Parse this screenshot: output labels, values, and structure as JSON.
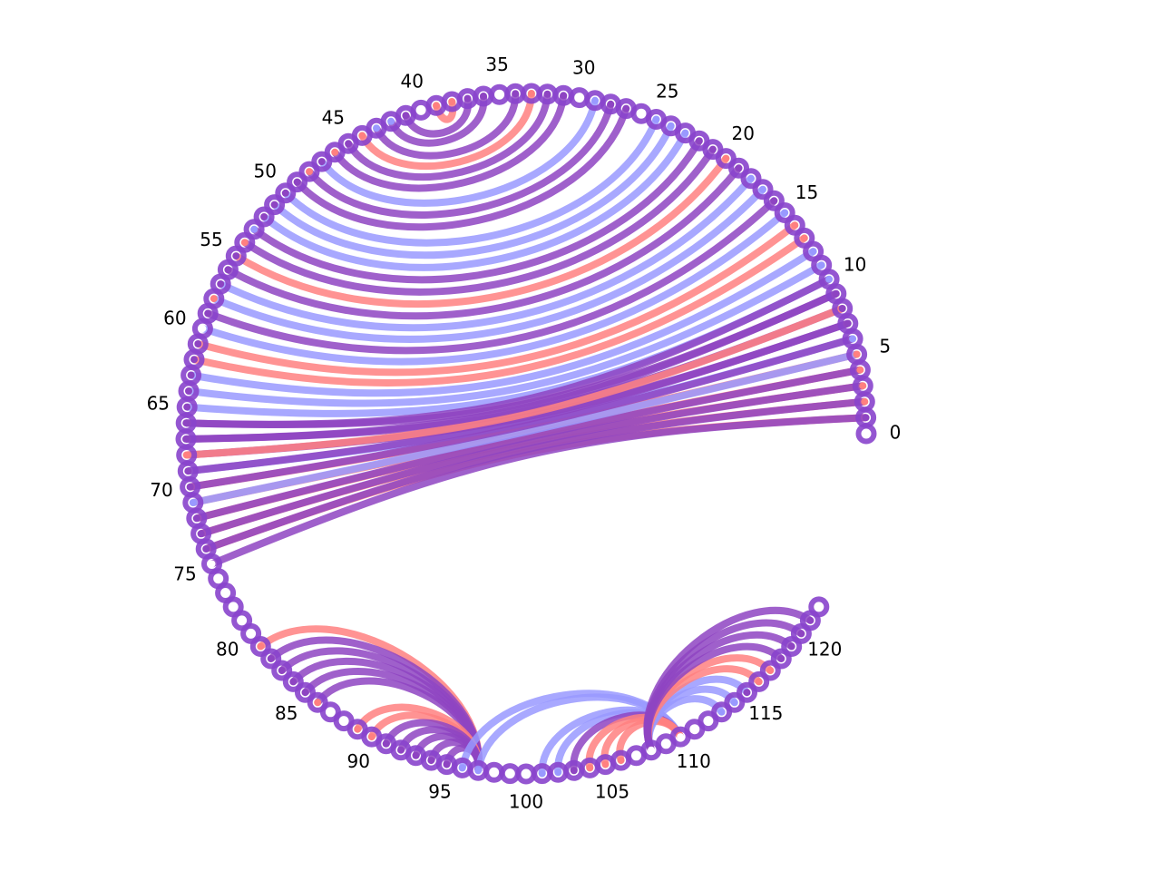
{
  "diagram": {
    "type": "circular-arc-diagram",
    "node_count": 123,
    "node_start": 0,
    "node_end": 122,
    "tick_labels": [
      "0",
      "5",
      "10",
      "15",
      "20",
      "25",
      "30",
      "35",
      "40",
      "45",
      "50",
      "55",
      "60",
      "65",
      "70",
      "75",
      "80",
      "85",
      "90",
      "95",
      "100",
      "105",
      "110",
      "115",
      "120"
    ],
    "colors": {
      "red": "#ff8080",
      "blue": "#9999ff",
      "purple": "#8e44c2",
      "node_ring": "#8844cc",
      "node_center": "#ffffff",
      "label": "#000000"
    },
    "node_center_colors": {
      "0": "white",
      "1": "purple",
      "2": "red",
      "3": "red",
      "4": "red",
      "5": "red",
      "6": "blue",
      "7": "purple",
      "8": "purple",
      "9": "purple",
      "10": "blue",
      "11": "blue",
      "12": "blue",
      "13": "red",
      "14": "red",
      "15": "blue",
      "16": "purple",
      "17": "blue",
      "18": "blue",
      "19": "purple",
      "20": "red",
      "21": "purple",
      "22": "purple",
      "23": "blue",
      "24": "blue",
      "25": "blue",
      "26": "white",
      "27": "purple",
      "28": "purple",
      "29": "blue",
      "30": "white",
      "31": "purple",
      "32": "purple",
      "33": "red",
      "34": "purple",
      "35": "white",
      "36": "purple",
      "37": "purple",
      "38": "red",
      "39": "red",
      "40": "white",
      "41": "purple",
      "42": "blue",
      "43": "blue",
      "44": "red",
      "45": "purple",
      "46": "red",
      "47": "purple",
      "48": "red",
      "49": "purple",
      "50": "purple",
      "51": "purple",
      "52": "purple",
      "53": "blue",
      "54": "red",
      "55": "purple",
      "56": "purple",
      "57": "purple",
      "58": "red",
      "59": "purple",
      "60": "white",
      "61": "purple",
      "62": "purple",
      "63": "purple",
      "64": "purple",
      "65": "purple",
      "66": "purple",
      "67": "purple",
      "68": "red",
      "69": "purple",
      "70": "purple",
      "71": "blue",
      "72": "purple",
      "73": "purple",
      "74": "purple",
      "75": "white",
      "76": "white",
      "77": "white",
      "78": "white",
      "79": "white",
      "80": "white",
      "81": "red",
      "82": "purple",
      "83": "purple",
      "84": "purple",
      "85": "purple",
      "86": "red",
      "87": "white",
      "88": "white",
      "89": "red",
      "90": "red",
      "91": "purple",
      "92": "purple",
      "93": "purple",
      "94": "purple",
      "95": "purple",
      "96": "blue",
      "97": "blue",
      "98": "white",
      "99": "white",
      "100": "white",
      "101": "blue",
      "102": "blue",
      "103": "purple",
      "104": "red",
      "105": "red",
      "106": "red",
      "107": "white",
      "108": "white",
      "109": "white",
      "110": "white",
      "111": "white",
      "112": "white",
      "113": "blue",
      "114": "blue",
      "115": "purple",
      "116": "red",
      "117": "red",
      "118": "purple",
      "119": "purple",
      "120": "purple",
      "121": "purple",
      "122": "white"
    },
    "edges": [
      [
        1,
        74,
        "red"
      ],
      [
        2,
        73,
        "red"
      ],
      [
        3,
        72,
        "red"
      ],
      [
        4,
        71,
        "red"
      ],
      [
        5,
        70,
        "red"
      ],
      [
        6,
        69,
        "blue"
      ],
      [
        7,
        68,
        "purple"
      ],
      [
        8,
        67,
        "purple"
      ],
      [
        9,
        66,
        "purple"
      ],
      [
        10,
        65,
        "blue"
      ],
      [
        11,
        64,
        "blue"
      ],
      [
        12,
        63,
        "blue"
      ],
      [
        13,
        62,
        "red"
      ],
      [
        14,
        61,
        "red"
      ],
      [
        15,
        60,
        "blue"
      ],
      [
        16,
        59,
        "purple"
      ],
      [
        17,
        58,
        "blue"
      ],
      [
        18,
        57,
        "blue"
      ],
      [
        19,
        56,
        "purple"
      ],
      [
        20,
        55,
        "red"
      ],
      [
        21,
        54,
        "purple"
      ],
      [
        22,
        53,
        "purple"
      ],
      [
        23,
        52,
        "blue"
      ],
      [
        24,
        51,
        "blue"
      ],
      [
        25,
        50,
        "blue"
      ],
      [
        27,
        49,
        "purple"
      ],
      [
        28,
        48,
        "purple"
      ],
      [
        29,
        47,
        "blue"
      ],
      [
        31,
        46,
        "purple"
      ],
      [
        32,
        45,
        "purple"
      ],
      [
        33,
        44,
        "red"
      ],
      [
        34,
        43,
        "purple"
      ],
      [
        36,
        42,
        "purple"
      ],
      [
        37,
        41,
        "purple"
      ],
      [
        38,
        39,
        "red"
      ],
      [
        1,
        75,
        "purple"
      ],
      [
        2,
        74,
        "purple"
      ],
      [
        3,
        73,
        "purple"
      ],
      [
        4,
        72,
        "purple"
      ],
      [
        5,
        71,
        "blue"
      ],
      [
        6,
        70,
        "purple"
      ],
      [
        7,
        69,
        "purple"
      ],
      [
        8,
        68,
        "red"
      ],
      [
        9,
        67,
        "purple"
      ],
      [
        10,
        66,
        "purple"
      ],
      [
        81,
        97,
        "red"
      ],
      [
        82,
        97,
        "purple"
      ],
      [
        83,
        97,
        "purple"
      ],
      [
        84,
        97,
        "purple"
      ],
      [
        85,
        97,
        "purple"
      ],
      [
        86,
        97,
        "purple"
      ],
      [
        89,
        97,
        "red"
      ],
      [
        90,
        97,
        "red"
      ],
      [
        91,
        97,
        "purple"
      ],
      [
        92,
        97,
        "purple"
      ],
      [
        93,
        97,
        "purple"
      ],
      [
        94,
        97,
        "purple"
      ],
      [
        95,
        97,
        "purple"
      ],
      [
        96,
        110,
        "blue"
      ],
      [
        97,
        110,
        "blue"
      ],
      [
        101,
        110,
        "blue"
      ],
      [
        102,
        110,
        "blue"
      ],
      [
        103,
        110,
        "purple"
      ],
      [
        104,
        110,
        "red"
      ],
      [
        105,
        110,
        "red"
      ],
      [
        106,
        110,
        "red"
      ],
      [
        113,
        108,
        "blue"
      ],
      [
        114,
        108,
        "blue"
      ],
      [
        115,
        108,
        "blue"
      ],
      [
        116,
        108,
        "red"
      ],
      [
        117,
        108,
        "red"
      ],
      [
        118,
        108,
        "purple"
      ],
      [
        119,
        108,
        "purple"
      ],
      [
        120,
        108,
        "purple"
      ],
      [
        121,
        108,
        "purple"
      ]
    ]
  }
}
